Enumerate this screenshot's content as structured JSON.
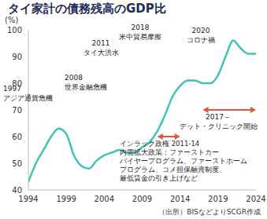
{
  "chart_data": {
    "type": "line",
    "title": "タイ家計の債務残高のGDP比",
    "y_label": "(%)",
    "x": [
      1994,
      1995,
      1996,
      1997,
      1998,
      1999,
      2000,
      2001,
      2002,
      2003,
      2004,
      2005,
      2006,
      2007,
      2008,
      2009,
      2010,
      2011,
      2012,
      2013,
      2014,
      2015,
      2016,
      2017,
      2018,
      2019,
      2020,
      2021,
      2022,
      2023,
      2024
    ],
    "values": [
      43,
      50,
      55,
      60,
      63,
      61,
      53,
      49,
      48,
      51,
      53,
      54,
      55,
      54,
      54,
      56,
      58,
      62,
      68,
      75,
      79,
      81,
      81,
      80,
      80,
      83,
      90,
      96,
      93,
      91,
      91
    ],
    "color": "#3fc4b5",
    "xlim": [
      1994,
      2024
    ],
    "xticks": [
      1994,
      1999,
      2004,
      2009,
      2014,
      2019,
      2024
    ],
    "ylim": [
      40,
      100
    ],
    "yticks": [
      40,
      50,
      60,
      70,
      80,
      90,
      100
    ],
    "grid": false,
    "annotations": [
      {
        "lines": [
          "1997",
          "アジア通貨危機"
        ]
      },
      {
        "lines": [
          "2008",
          "世界金融危機"
        ]
      },
      {
        "lines": [
          "2011",
          "タイ大洪水"
        ]
      },
      {
        "lines": [
          "2018",
          "米中貿易摩擦"
        ]
      },
      {
        "lines": [
          "2020",
          "コロナ禍"
        ]
      },
      {
        "lines": [
          "2017～",
          "デット・クリニック開始"
        ]
      },
      {
        "lines": [
          "インラック政権 2011-14",
          "内需拡大政策：ファーストカー",
          "バイヤープログラム、ファーストホーム",
          "プログラム、コメ担保融資制度、",
          "最低賃金の引き上げなど"
        ]
      }
    ],
    "periods": [
      {
        "span": [
          2011,
          2014
        ],
        "color": "#e8503f"
      },
      {
        "span": [
          2017,
          2024
        ],
        "color": "#e8503f"
      }
    ],
    "source": "（出所）BISなどよりSCGR作成"
  }
}
